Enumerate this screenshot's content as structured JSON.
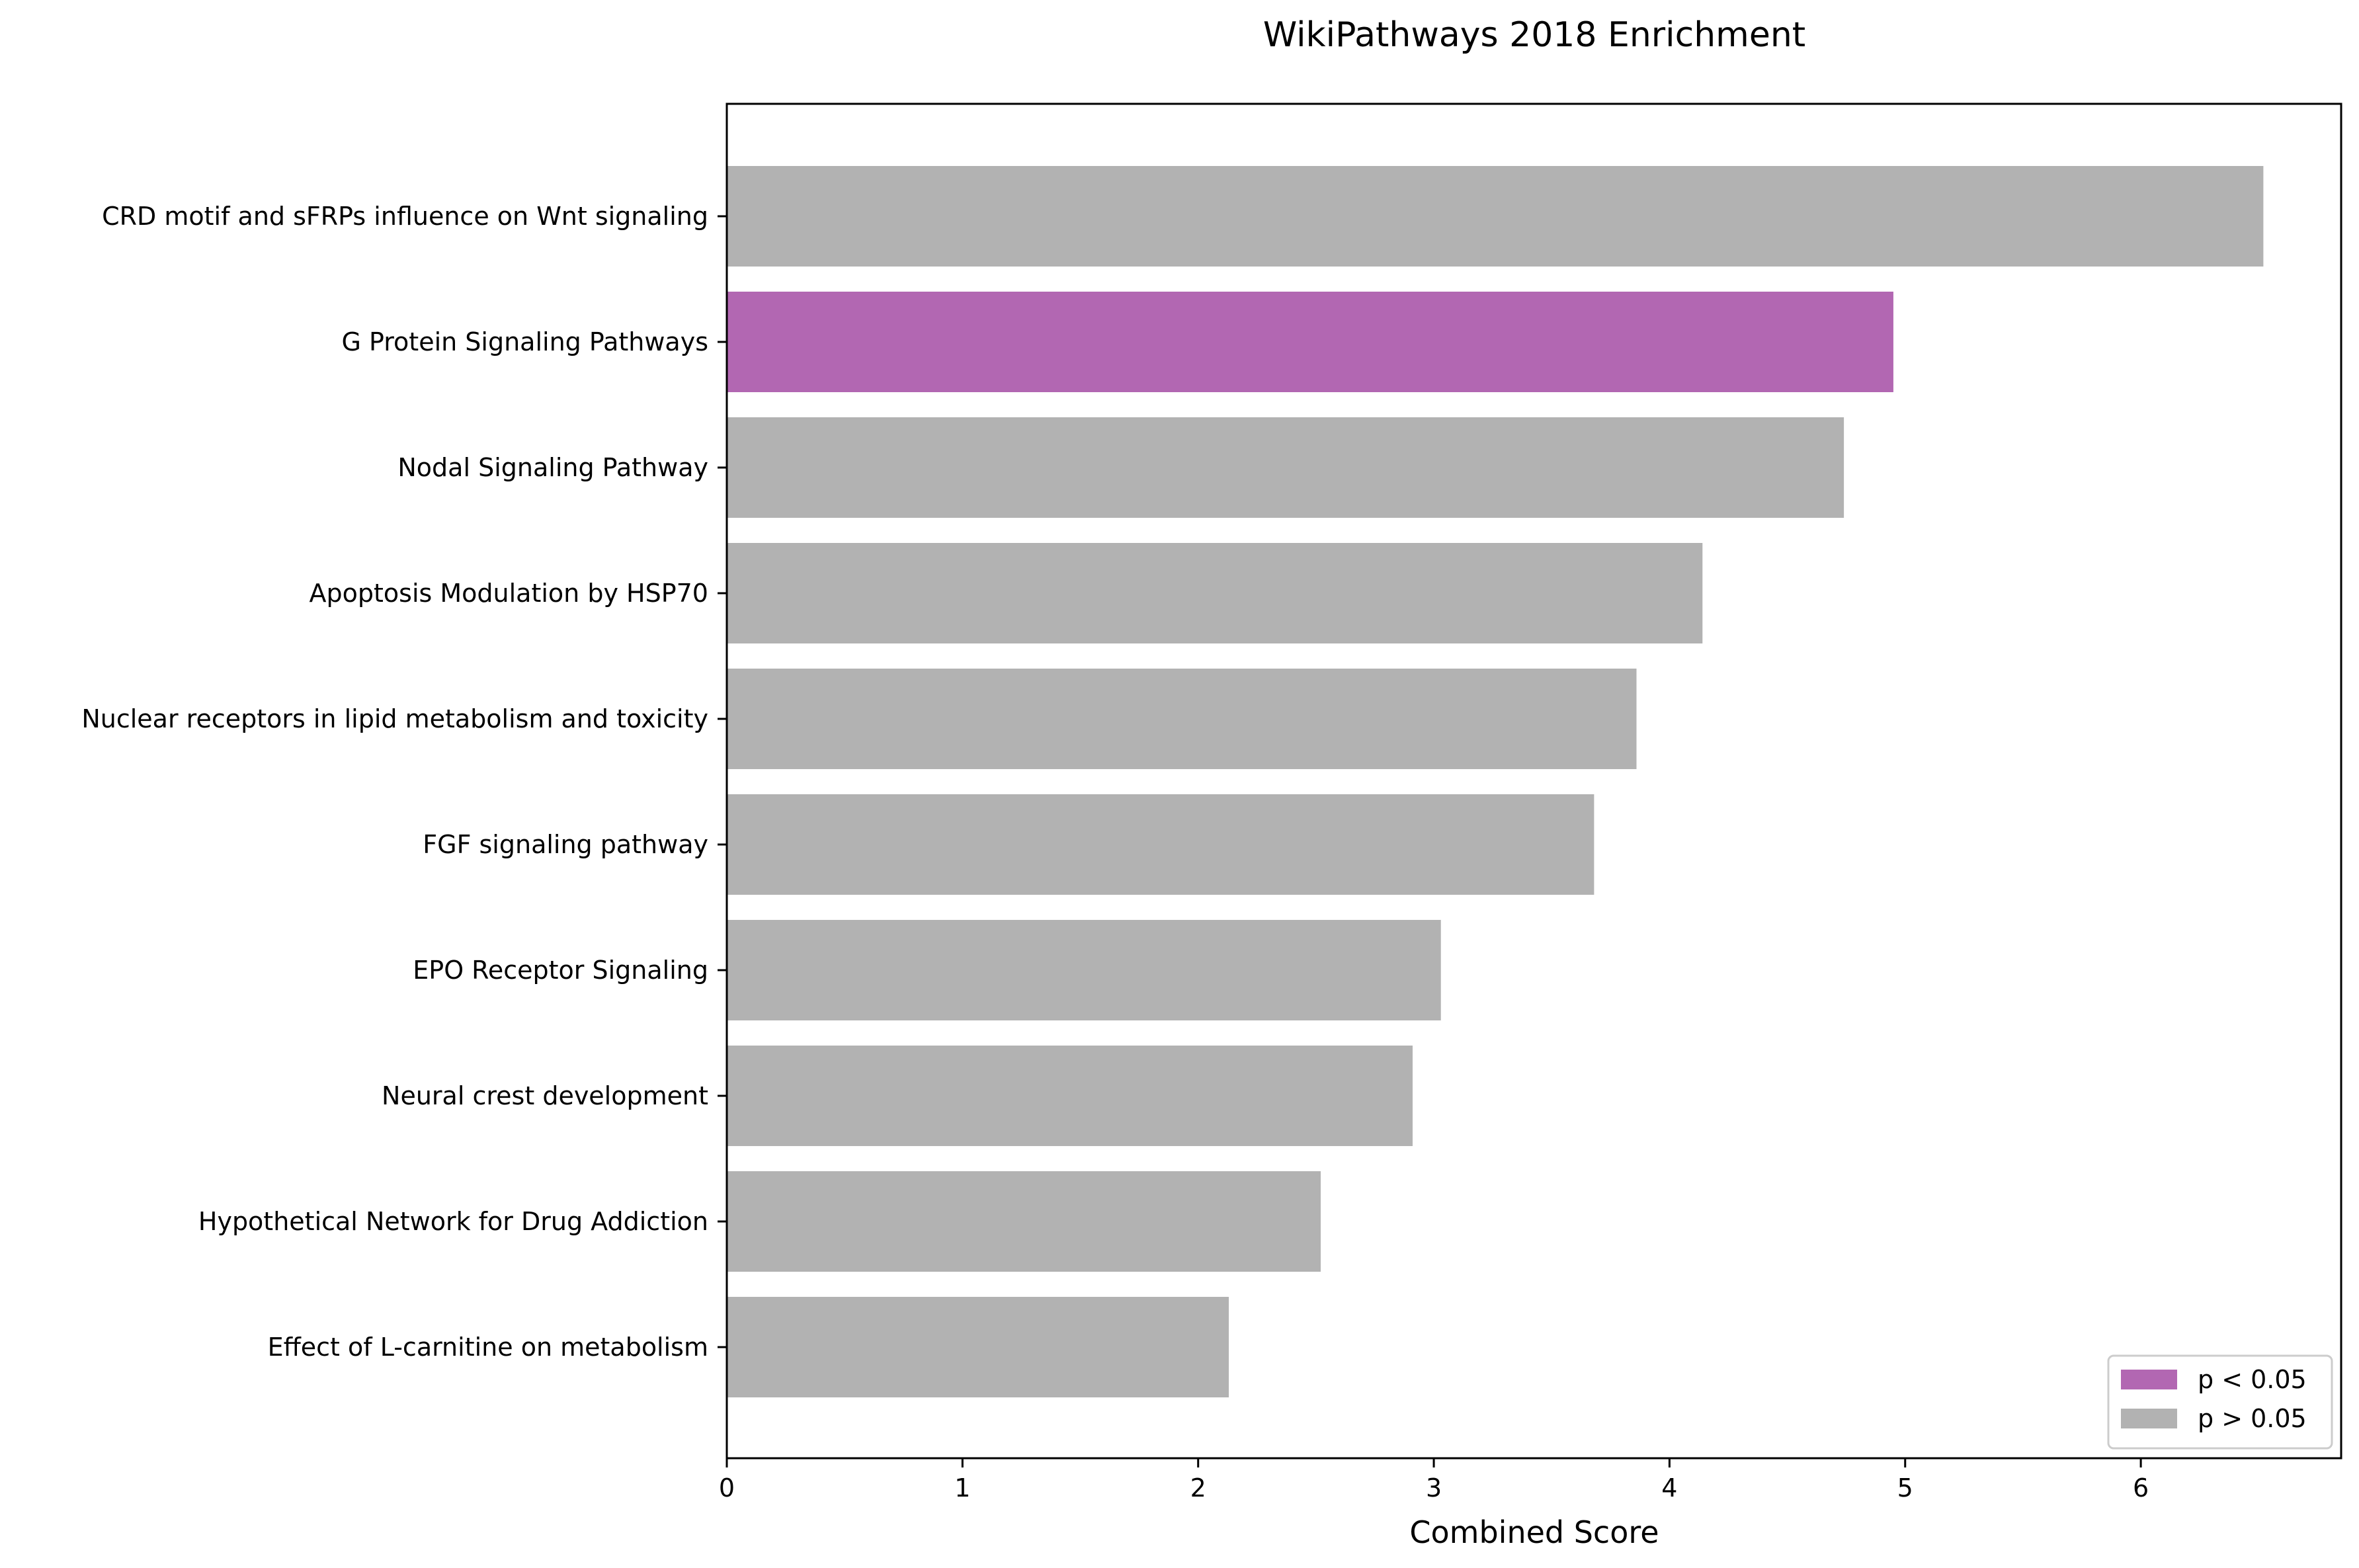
{
  "chart_data": {
    "type": "bar",
    "orientation": "horizontal",
    "title": "WikiPathways 2018 Enrichment",
    "xlabel": "Combined Score",
    "ylabel": "",
    "xlim": [
      0,
      6.85
    ],
    "xticks": [
      "0",
      "1",
      "2",
      "3",
      "4",
      "5",
      "6"
    ],
    "grid": false,
    "legend_position": "lower-right",
    "categories": [
      "CRD motif and sFRPs influence on Wnt signaling",
      "G Protein Signaling Pathways",
      "Nodal Signaling Pathway",
      "Apoptosis Modulation by HSP70",
      "Nuclear receptors in lipid metabolism and toxicity",
      "FGF signaling pathway",
      "EPO Receptor Signaling",
      "Neural crest development",
      "Hypothetical Network for Drug Addiction",
      "Effect of L-carnitine on metabolism"
    ],
    "values": [
      6.52,
      4.95,
      4.74,
      4.14,
      3.86,
      3.68,
      3.03,
      2.91,
      2.52,
      2.13
    ],
    "significance": [
      "p > 0.05",
      "p < 0.05",
      "p > 0.05",
      "p > 0.05",
      "p > 0.05",
      "p > 0.05",
      "p > 0.05",
      "p > 0.05",
      "p > 0.05",
      "p > 0.05"
    ],
    "legend": [
      {
        "label": "p < 0.05",
        "color": "#b267b2"
      },
      {
        "label": "p > 0.05",
        "color": "#b2b2b2"
      }
    ],
    "colors": {
      "significant": "#b267b2",
      "not_significant": "#b2b2b2"
    }
  }
}
